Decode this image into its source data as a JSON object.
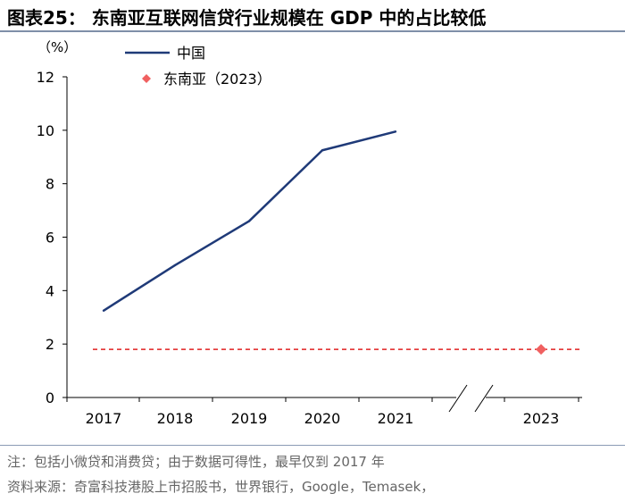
{
  "title": "图表25：  东南亚互联网信贷行业规模在 GDP 中的占比较低",
  "chart_data": {
    "type": "line",
    "title": "东南亚互联网信贷行业规模在 GDP 中的占比较低",
    "ylabel": "（%）",
    "xlabel": "",
    "ylim": [
      0,
      12
    ],
    "yticks": [
      0,
      2,
      4,
      6,
      8,
      10,
      12
    ],
    "categories": [
      "2017",
      "2018",
      "2019",
      "2020",
      "2021",
      "2023"
    ],
    "legend_position": "top",
    "series": [
      {
        "name": "中国",
        "style": "line",
        "color": "#1f3a78",
        "x": [
          "2017",
          "2018",
          "2019",
          "2020",
          "2021"
        ],
        "values": [
          3.25,
          4.95,
          6.6,
          9.25,
          9.95
        ]
      },
      {
        "name": "东南亚（2023）",
        "style": "marker",
        "color": "#f06060",
        "x": [
          "2023"
        ],
        "values": [
          1.8
        ]
      }
    ],
    "reference_line": {
      "value": 1.8,
      "style": "dashed",
      "color": "#e02020"
    },
    "axis_break": "between 2021 and 2023"
  },
  "footer": {
    "note": "注：包括小微贷和消费贷；由于数据可得性，最早仅到 2017 年",
    "source": "资料来源：奇富科技港股上市招股书，世界银行，Google，Temasek，"
  }
}
